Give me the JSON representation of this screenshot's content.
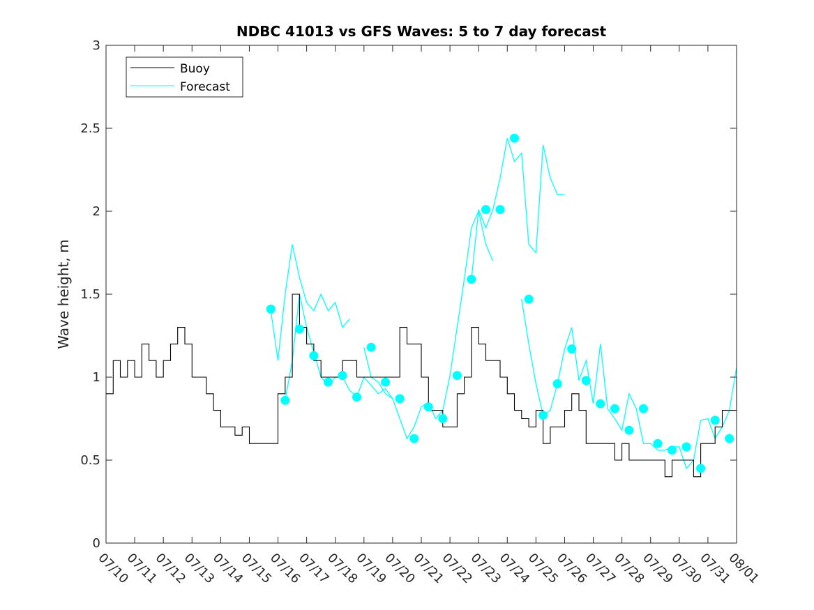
{
  "chart_data": {
    "type": "line",
    "title": "NDBC 41013 vs GFS Waves: 5 to 7 day forecast",
    "xlabel": "",
    "ylabel": "Wave height, m",
    "xlim": [
      "07/10",
      "08/01"
    ],
    "ylim": [
      0,
      3
    ],
    "x_tick_labels": [
      "07/10",
      "07/11",
      "07/12",
      "07/13",
      "07/14",
      "07/15",
      "07/16",
      "07/17",
      "07/18",
      "07/19",
      "07/20",
      "07/21",
      "07/22",
      "07/23",
      "07/24",
      "07/25",
      "07/26",
      "07/27",
      "07/28",
      "07/29",
      "07/30",
      "07/31",
      "08/01"
    ],
    "y_ticks": [
      0,
      0.5,
      1,
      1.5,
      2,
      2.5,
      3
    ],
    "y_tick_labels": [
      "0",
      "0.5",
      "1",
      "1.5",
      "2",
      "2.5",
      "3"
    ],
    "grid": false,
    "legend_position": "top-left",
    "legend": [
      {
        "label": "Buoy",
        "color": "#000000"
      },
      {
        "label": "Forecast",
        "color": "#00ffff"
      }
    ],
    "colors": {
      "buoy": "#000000",
      "forecast": "#00ffff"
    },
    "buoy": {
      "name": "Buoy",
      "x": [
        "07/10 00:00",
        "07/10 06:00",
        "07/10 12:00",
        "07/10 18:00",
        "07/11 00:00",
        "07/11 06:00",
        "07/11 12:00",
        "07/11 18:00",
        "07/12 00:00",
        "07/12 06:00",
        "07/12 12:00",
        "07/12 18:00",
        "07/13 00:00",
        "07/13 06:00",
        "07/13 12:00",
        "07/13 18:00",
        "07/14 00:00",
        "07/14 06:00",
        "07/14 12:00",
        "07/14 18:00",
        "07/15 00:00",
        "07/15 06:00",
        "07/15 12:00",
        "07/15 18:00",
        "07/16 00:00",
        "07/16 06:00",
        "07/16 12:00",
        "07/16 18:00",
        "07/17 00:00",
        "07/17 06:00",
        "07/17 12:00",
        "07/17 18:00",
        "07/18 00:00",
        "07/18 06:00",
        "07/18 12:00",
        "07/18 18:00",
        "07/19 00:00",
        "07/19 06:00",
        "07/19 12:00",
        "07/19 18:00",
        "07/20 00:00",
        "07/20 06:00",
        "07/20 12:00",
        "07/20 18:00",
        "07/21 00:00",
        "07/21 06:00",
        "07/21 12:00",
        "07/21 18:00",
        "07/22 00:00",
        "07/22 06:00",
        "07/22 12:00",
        "07/22 18:00",
        "07/23 00:00",
        "07/23 06:00",
        "07/23 12:00",
        "07/23 18:00",
        "07/24 00:00",
        "07/24 06:00",
        "07/24 12:00",
        "07/24 18:00",
        "07/25 00:00",
        "07/25 06:00",
        "07/25 12:00",
        "07/25 18:00",
        "07/26 00:00",
        "07/26 06:00",
        "07/26 12:00",
        "07/26 18:00",
        "07/27 00:00",
        "07/27 06:00",
        "07/27 12:00",
        "07/27 18:00",
        "07/28 00:00",
        "07/28 06:00",
        "07/28 12:00",
        "07/28 18:00",
        "07/29 00:00",
        "07/29 06:00",
        "07/29 12:00",
        "07/29 18:00",
        "07/30 00:00",
        "07/30 06:00",
        "07/30 12:00",
        "07/30 18:00",
        "07/31 00:00",
        "07/31 06:00",
        "07/31 12:00",
        "07/31 18:00",
        "08/01 00:00"
      ],
      "values": [
        0.9,
        1.1,
        1.0,
        1.1,
        1.0,
        1.2,
        1.1,
        1.0,
        1.1,
        1.2,
        1.3,
        1.2,
        1.0,
        1.0,
        0.9,
        0.8,
        0.7,
        0.7,
        0.65,
        0.7,
        0.6,
        0.6,
        0.6,
        0.6,
        0.9,
        1.0,
        1.5,
        1.3,
        1.2,
        1.1,
        1.0,
        1.0,
        1.0,
        1.1,
        1.1,
        1.0,
        1.0,
        1.0,
        1.0,
        1.0,
        1.0,
        1.3,
        1.2,
        1.2,
        1.0,
        0.8,
        0.8,
        0.7,
        0.7,
        0.9,
        1.0,
        1.3,
        1.2,
        1.1,
        1.1,
        1.0,
        0.9,
        0.8,
        0.75,
        0.7,
        0.8,
        0.6,
        0.7,
        0.7,
        0.8,
        0.9,
        0.8,
        0.6,
        0.6,
        0.6,
        0.6,
        0.5,
        0.6,
        0.5,
        0.5,
        0.5,
        0.5,
        0.5,
        0.4,
        0.5,
        0.5,
        0.5,
        0.4,
        0.6,
        0.6,
        0.7,
        0.8,
        0.8,
        1.0
      ]
    },
    "forecast": {
      "name": "Forecast",
      "runs": [
        {
          "x": [
            "07/15 18:00",
            "07/16 00:00",
            "07/16 06:00",
            "07/16 12:00",
            "07/16 18:00",
            "07/17 00:00",
            "07/17 06:00",
            "07/17 12:00",
            "07/17 18:00",
            "07/18 00:00",
            "07/18 06:00",
            "07/18 12:00"
          ],
          "values": [
            1.4,
            1.1,
            1.5,
            1.8,
            1.6,
            1.45,
            1.4,
            1.5,
            1.4,
            1.45,
            1.3,
            1.35
          ]
        },
        {
          "x": [
            "07/16 06:00",
            "07/16 12:00",
            "07/16 18:00",
            "07/17 00:00",
            "07/17 06:00",
            "07/17 12:00",
            "07/17 18:00",
            "07/18 00:00",
            "07/18 06:00",
            "07/18 12:00",
            "07/18 18:00",
            "07/19 00:00",
            "07/19 06:00",
            "07/19 12:00",
            "07/19 18:00",
            "07/20 00:00"
          ],
          "values": [
            0.86,
            1.1,
            1.5,
            1.3,
            1.15,
            1.0,
            0.95,
            1.0,
            1.0,
            0.92,
            0.88,
            1.0,
            0.95,
            0.9,
            0.93,
            0.87
          ]
        },
        {
          "x": [
            "07/19 00:00",
            "07/19 06:00",
            "07/19 12:00",
            "07/19 18:00",
            "07/20 00:00",
            "07/20 06:00",
            "07/20 12:00",
            "07/20 18:00",
            "07/21 00:00",
            "07/21 06:00",
            "07/21 12:00",
            "07/21 18:00",
            "07/22 00:00",
            "07/22 06:00",
            "07/22 12:00",
            "07/22 18:00",
            "07/23 00:00",
            "07/23 06:00",
            "07/23 12:00"
          ],
          "values": [
            1.18,
            1.0,
            0.97,
            0.9,
            0.87,
            0.75,
            0.63,
            0.7,
            0.82,
            0.85,
            0.75,
            0.8,
            1.01,
            1.3,
            1.59,
            1.9,
            2.0,
            1.8,
            1.7
          ]
        },
        {
          "x": [
            "07/22 18:00",
            "07/23 00:00",
            "07/23 06:00",
            "07/23 12:00",
            "07/23 18:00",
            "07/24 00:00",
            "07/24 06:00",
            "07/24 12:00",
            "07/24 18:00",
            "07/25 00:00",
            "07/25 06:00",
            "07/25 12:00",
            "07/25 18:00",
            "07/26 00:00"
          ],
          "values": [
            1.59,
            2.01,
            1.9,
            2.01,
            2.2,
            2.44,
            2.3,
            2.35,
            1.8,
            1.75,
            2.4,
            2.2,
            2.1,
            2.1
          ]
        },
        {
          "x": [
            "07/24 12:00",
            "07/24 18:00",
            "07/25 00:00",
            "07/25 06:00",
            "07/25 12:00",
            "07/25 18:00",
            "07/26 00:00",
            "07/26 06:00",
            "07/26 12:00",
            "07/26 18:00",
            "07/27 00:00",
            "07/27 06:00",
            "07/27 12:00",
            "07/27 18:00",
            "07/28 00:00",
            "07/28 06:00",
            "07/28 12:00",
            "07/28 18:00",
            "07/29 00:00",
            "07/29 06:00",
            "07/29 12:00",
            "07/29 18:00",
            "07/30 00:00",
            "07/30 06:00",
            "07/30 12:00",
            "07/30 18:00",
            "07/31 00:00",
            "07/31 06:00",
            "07/31 12:00",
            "07/31 18:00",
            "08/01 00:00"
          ],
          "values": [
            1.47,
            1.2,
            0.96,
            0.77,
            0.8,
            0.96,
            1.17,
            1.3,
            0.98,
            1.1,
            0.84,
            1.2,
            0.81,
            0.75,
            0.68,
            0.9,
            0.81,
            0.6,
            0.6,
            0.56,
            0.56,
            0.58,
            0.58,
            0.45,
            0.5,
            0.74,
            0.75,
            0.63,
            0.7,
            0.8,
            1.06
          ]
        }
      ],
      "markers": {
        "x": [
          "07/15 18:00",
          "07/16 06:00",
          "07/16 18:00",
          "07/17 06:00",
          "07/17 18:00",
          "07/18 06:00",
          "07/18 18:00",
          "07/19 06:00",
          "07/19 18:00",
          "07/20 06:00",
          "07/20 18:00",
          "07/21 06:00",
          "07/21 18:00",
          "07/22 06:00",
          "07/22 18:00",
          "07/23 06:00",
          "07/23 18:00",
          "07/24 06:00",
          "07/24 18:00",
          "07/25 06:00",
          "07/25 18:00",
          "07/26 06:00",
          "07/26 18:00",
          "07/27 06:00",
          "07/27 18:00",
          "07/28 06:00",
          "07/28 18:00",
          "07/29 06:00",
          "07/29 18:00",
          "07/30 06:00",
          "07/30 18:00",
          "07/31 06:00",
          "07/31 18:00"
        ],
        "values": [
          1.41,
          0.86,
          1.29,
          1.13,
          0.97,
          1.01,
          0.88,
          1.18,
          0.97,
          0.87,
          0.63,
          0.82,
          0.75,
          1.01,
          1.59,
          2.01,
          2.01,
          2.44,
          1.47,
          0.77,
          0.96,
          1.17,
          0.98,
          0.84,
          0.81,
          0.68,
          0.81,
          0.6,
          0.56,
          0.58,
          0.45,
          0.74,
          0.63
        ]
      }
    }
  }
}
